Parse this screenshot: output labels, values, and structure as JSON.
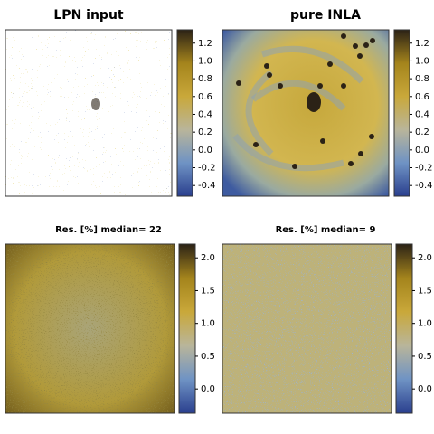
{
  "chart_data": [
    {
      "type": "heatmap",
      "title": "LPN input",
      "colorscale": [
        "#2a3f8e",
        "#6f93c4",
        "#b9b59a",
        "#c9a83a",
        "#a4841c",
        "#2b2216"
      ],
      "zlim": [
        -0.52,
        1.35
      ],
      "zticks": [
        -0.4,
        -0.2,
        {
          "value": 0,
          "label": "0.0"
        },
        0.2,
        0.4,
        0.6,
        0.8,
        {
          "value": 1,
          "label": "1.0"
        },
        1.2
      ]
    },
    {
      "type": "heatmap",
      "title": "pure INLA",
      "colorscale": [
        "#2a3f8e",
        "#6f93c4",
        "#b9b59a",
        "#c9a83a",
        "#a4841c",
        "#2b2216"
      ],
      "zlim": [
        -0.52,
        1.35
      ],
      "zticks": [
        -0.4,
        -0.2,
        {
          "value": 0,
          "label": "0.0"
        },
        0.2,
        0.4,
        0.6,
        0.8,
        {
          "value": 1,
          "label": "1.0"
        },
        1.2
      ]
    },
    {
      "type": "heatmap",
      "title": "Res. [%] median= 22",
      "colorscale": [
        "#2a3f8e",
        "#6f93c4",
        "#b9b59a",
        "#c9a83a",
        "#a4841c",
        "#2b2216"
      ],
      "zlim": [
        -0.37,
        2.21
      ],
      "zticks": [
        {
          "value": 0,
          "label": "0.0"
        },
        0.5,
        {
          "value": 1,
          "label": "1.0"
        },
        1.5,
        {
          "value": 2,
          "label": "2.0"
        }
      ]
    },
    {
      "type": "heatmap",
      "title": "Res. [%]  median= 9",
      "colorscale": [
        "#2a3f8e",
        "#6f93c4",
        "#b9b59a",
        "#c9a83a",
        "#a4841c",
        "#2b2216"
      ],
      "zlim": [
        -0.37,
        2.21
      ],
      "zticks": [
        {
          "value": 0,
          "label": "0.0"
        },
        0.5,
        {
          "value": 1,
          "label": "1.0"
        },
        1.5,
        {
          "value": 2,
          "label": "2.0"
        }
      ]
    }
  ]
}
